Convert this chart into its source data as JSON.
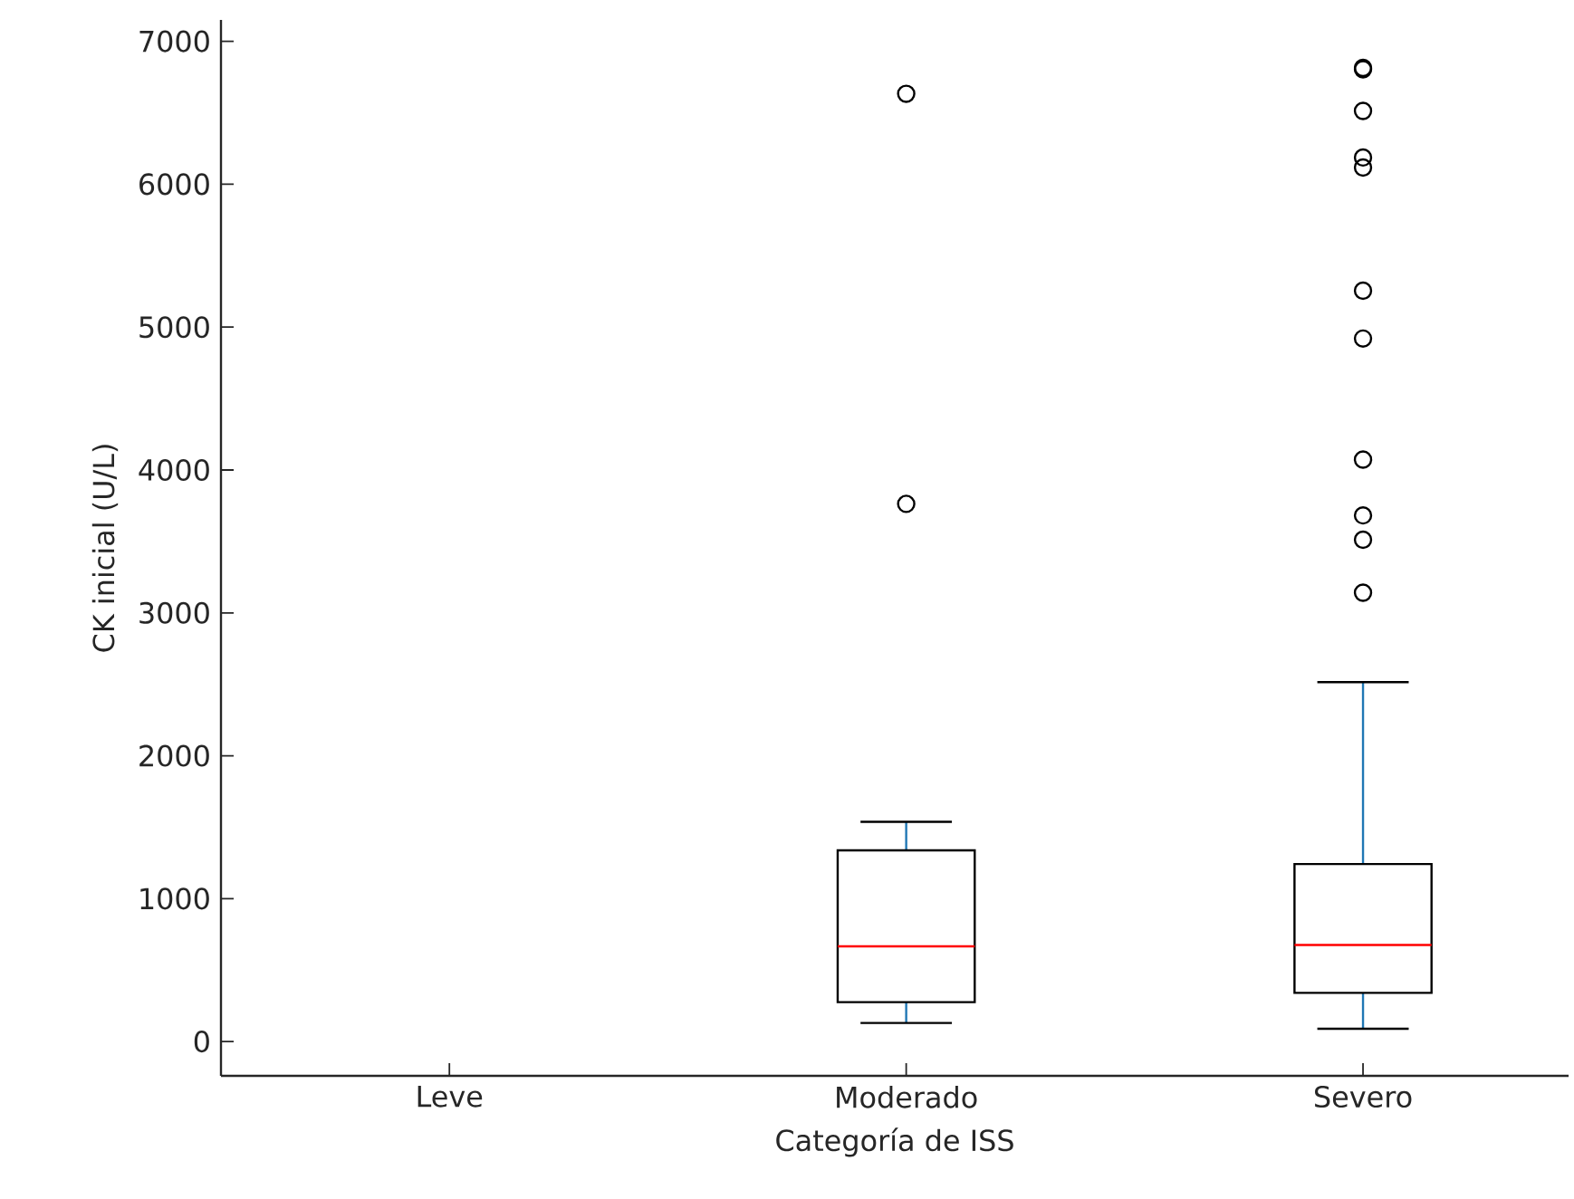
{
  "chart_data": {
    "type": "box",
    "xlabel": "Categoría de ISS",
    "ylabel": "CK inicial (U/L)",
    "categories": [
      "Leve",
      "Moderado",
      "Severo"
    ],
    "boxes": [
      null,
      {
        "low": 130,
        "q1": 276,
        "median": 666,
        "q3": 1338,
        "high": 1538,
        "outliers": [
          3763,
          6633
        ]
      },
      {
        "low": 90,
        "q1": 341,
        "median": 676,
        "q3": 1242,
        "high": 2515,
        "outliers": [
          3141,
          3512,
          3682,
          4073,
          4920,
          5255,
          6117,
          6187,
          6513,
          6804,
          6814
        ]
      }
    ],
    "ylim": [
      -240,
      7150
    ],
    "yticks": [
      0,
      1000,
      2000,
      3000,
      4000,
      5000,
      6000,
      7000
    ],
    "marker": "circle"
  }
}
